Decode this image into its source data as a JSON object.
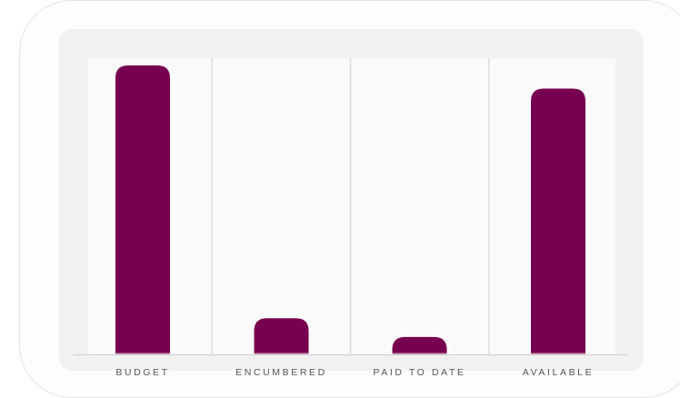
{
  "colors": {
    "bar": "#780050",
    "baseline_line": "#cfcfcf",
    "bar_underline": "#c9a0b5",
    "divider": "#dcdcdc"
  },
  "chart_data": {
    "type": "bar",
    "categories": [
      "BUDGET",
      "ENCUMBERED",
      "PAID TO DATE",
      "AVAILABLE"
    ],
    "values": [
      100,
      12.5,
      6,
      92
    ],
    "ylim": [
      0,
      100
    ],
    "grid": false,
    "legend": "none"
  }
}
